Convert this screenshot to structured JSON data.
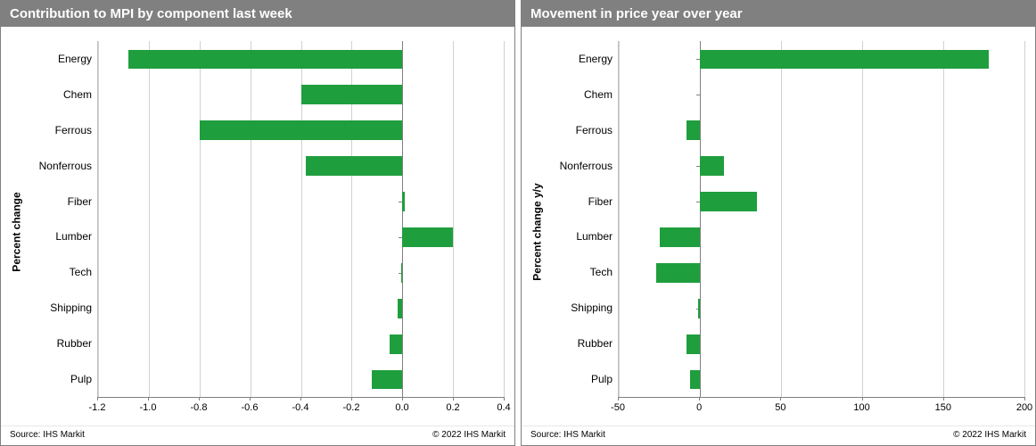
{
  "charts": [
    {
      "title": "Contribution to MPI by component last week",
      "ylabel": "Percent change",
      "categories": [
        "Energy",
        "Chem",
        "Ferrous",
        "Nonferrous",
        "Fiber",
        "Lumber",
        "Tech",
        "Shipping",
        "Rubber",
        "Pulp"
      ],
      "values": [
        -1.08,
        -0.4,
        -0.8,
        -0.38,
        0.01,
        0.2,
        -0.005,
        -0.02,
        -0.05,
        -0.12
      ],
      "bar_color": "#1f9e3e",
      "xlim": [
        -1.2,
        0.4
      ],
      "xticks": [
        -1.2,
        -1.0,
        -0.8,
        -0.6,
        -0.4,
        -0.2,
        0.0,
        0.2,
        0.4
      ],
      "xtick_labels": [
        "-1.2",
        "-1.0",
        "-0.8",
        "-0.6",
        "-0.4",
        "-0.2",
        "0.0",
        "0.2",
        "0.4"
      ],
      "background_color": "#ffffff",
      "grid_color": "#d0d0d0",
      "source_text": "Source: IHS Markit",
      "copyright_text": "© 2022 IHS Markit"
    },
    {
      "title": "Movement in price year over year",
      "ylabel": "Percent change y/y",
      "categories": [
        "Energy",
        "Chem",
        "Ferrous",
        "Nonferrous",
        "Fiber",
        "Lumber",
        "Tech",
        "Shipping",
        "Rubber",
        "Pulp"
      ],
      "values": [
        178,
        0,
        -8,
        15,
        35,
        -25,
        -27,
        -1,
        -8,
        -6
      ],
      "bar_color": "#1f9e3e",
      "xlim": [
        -50,
        200
      ],
      "xticks": [
        -50,
        0,
        50,
        100,
        150,
        200
      ],
      "xtick_labels": [
        "-50",
        "0",
        "50",
        "100",
        "150",
        "200"
      ],
      "background_color": "#ffffff",
      "grid_color": "#d0d0d0",
      "source_text": "Source: IHS Markit",
      "copyright_text": "© 2022 IHS Markit"
    }
  ]
}
